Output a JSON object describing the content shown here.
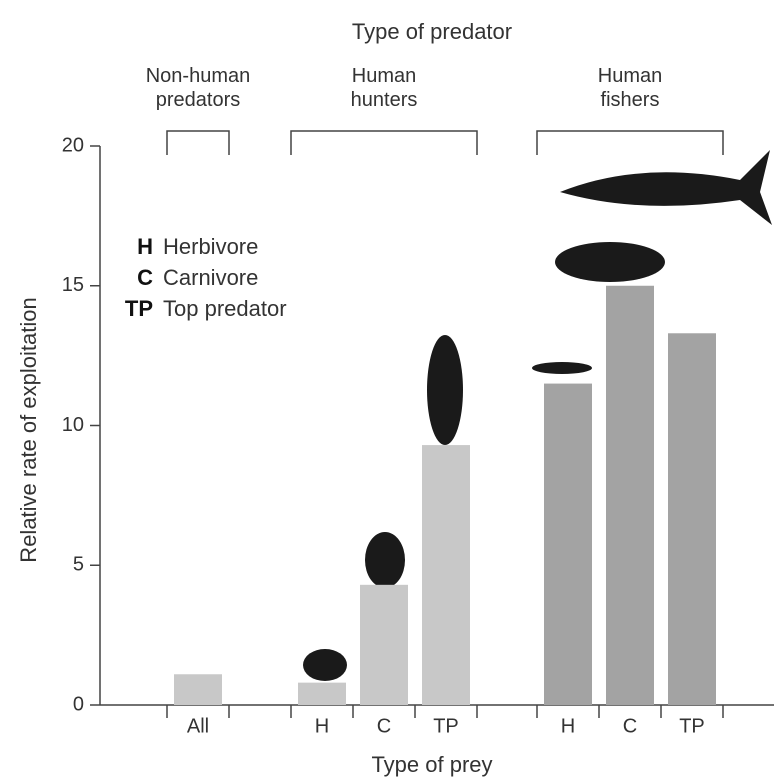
{
  "chart_data": {
    "type": "bar",
    "title": "Type of predator",
    "x_label": "Type of prey",
    "y_label": "Relative rate of exploitation",
    "ylim": [
      0,
      20
    ],
    "yticks": [
      0,
      5,
      10,
      15,
      20
    ],
    "series": [
      {
        "name": "Non-human predators",
        "color": "#c8c8c8",
        "categories": [
          "All"
        ],
        "values": [
          1.1
        ]
      },
      {
        "name": "Human hunters",
        "color": "#c8c8c8",
        "categories": [
          "H",
          "C",
          "TP"
        ],
        "values": [
          0.8,
          4.3,
          9.3
        ]
      },
      {
        "name": "Human fishers",
        "color": "#a3a3a3",
        "categories": [
          "H",
          "C",
          "TP"
        ],
        "values": [
          11.5,
          15.0,
          13.3
        ]
      }
    ],
    "legend": [
      {
        "key": "H",
        "label": "Herbivore"
      },
      {
        "key": "C",
        "label": "Carnivore"
      },
      {
        "key": "TP",
        "label": "Top predator"
      }
    ]
  }
}
